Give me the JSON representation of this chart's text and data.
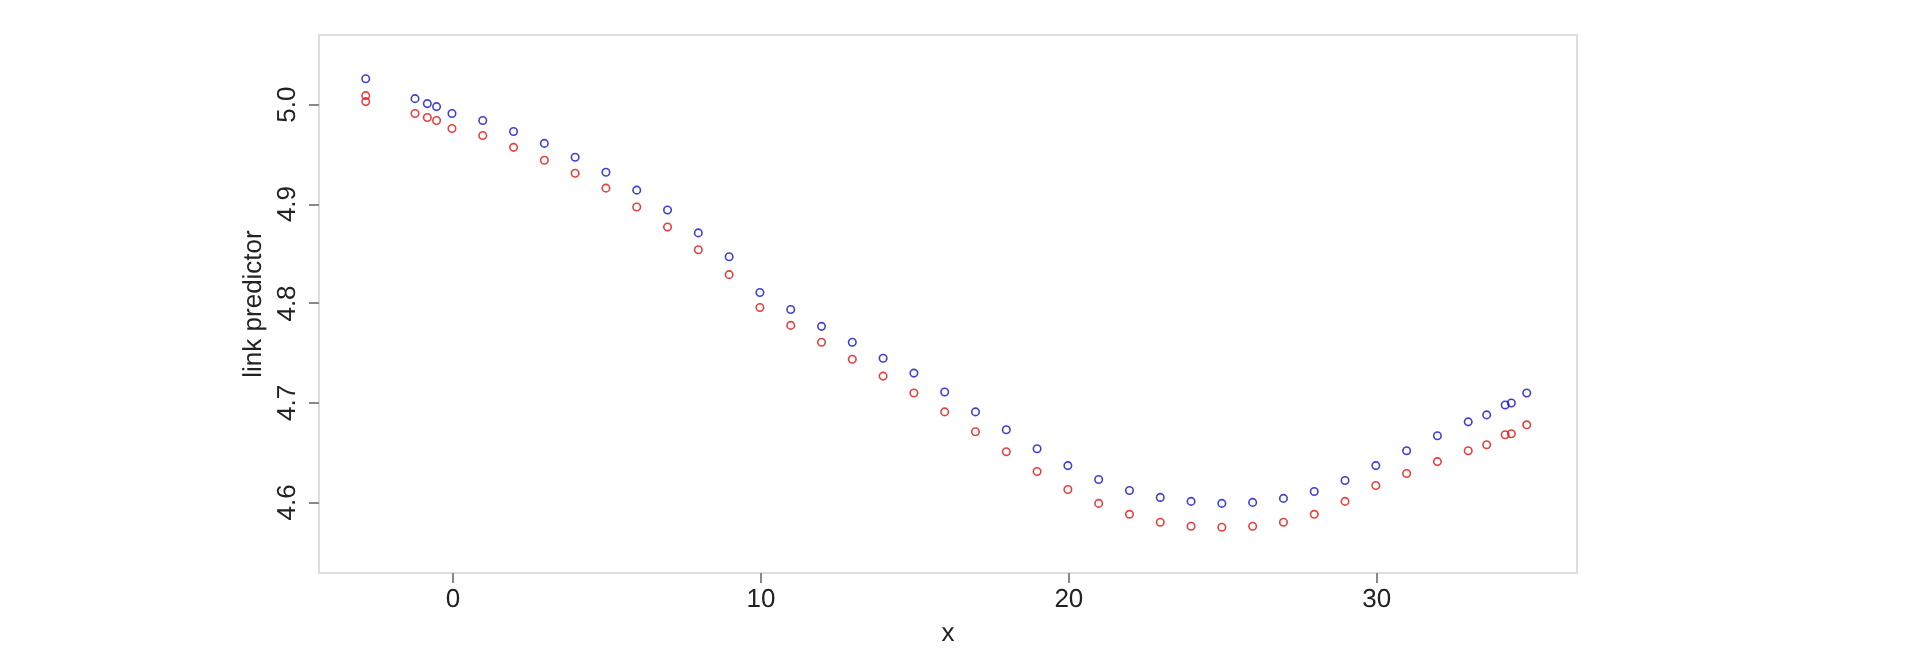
{
  "chart_data": {
    "type": "scatter",
    "xlabel": "x",
    "ylabel": "link predictor",
    "xlim": [
      -4.35,
      36.5
    ],
    "ylim": [
      4.529,
      5.07
    ],
    "xticks": [
      0,
      10,
      20,
      30
    ],
    "yticks": [
      4.6,
      4.7,
      4.8,
      4.9,
      {
        "value": 5,
        "label": "5.0"
      }
    ],
    "grid": false,
    "marker": "circle",
    "series": [
      {
        "color": "#1010c8",
        "x": [
          -2.8,
          -1.2,
          -0.8,
          -0.5,
          0,
          1,
          2,
          3,
          4,
          5,
          6,
          7,
          8,
          9,
          10,
          11,
          12,
          13,
          14,
          15,
          16,
          17,
          18,
          19,
          20,
          21,
          22,
          23,
          24,
          25,
          26,
          27,
          28,
          29,
          30,
          31,
          32,
          33,
          33.6,
          34.2,
          34.4,
          34.9
        ],
        "values": [
          5.025,
          5.005,
          5.0,
          4.997,
          4.99,
          4.983,
          4.972,
          4.96,
          4.946,
          4.931,
          4.913,
          4.893,
          4.87,
          4.846,
          4.81,
          4.793,
          4.776,
          4.76,
          4.744,
          4.729,
          4.71,
          4.69,
          4.672,
          4.653,
          4.636,
          4.622,
          4.611,
          4.604,
          4.6,
          4.598,
          4.599,
          4.603,
          4.61,
          4.621,
          4.636,
          4.651,
          4.666,
          4.68,
          4.687,
          4.697,
          4.699,
          4.709
        ]
      },
      {
        "color": "#e01010",
        "x": [
          -2.8,
          -2.8,
          -1.2,
          -0.8,
          -0.5,
          0,
          1,
          2,
          3,
          4,
          5,
          6,
          7,
          8,
          9,
          10,
          11,
          12,
          13,
          14,
          15,
          16,
          17,
          18,
          19,
          20,
          21,
          22,
          23,
          24,
          25,
          26,
          27,
          28,
          29,
          30,
          31,
          32,
          33,
          33.6,
          34.2,
          34.4,
          34.9
        ],
        "values": [
          5.008,
          5.002,
          4.99,
          4.986,
          4.983,
          4.975,
          4.968,
          4.956,
          4.943,
          4.93,
          4.915,
          4.896,
          4.876,
          4.853,
          4.828,
          4.795,
          4.777,
          4.76,
          4.743,
          4.726,
          4.709,
          4.69,
          4.67,
          4.65,
          4.63,
          4.612,
          4.598,
          4.587,
          4.579,
          4.575,
          4.574,
          4.575,
          4.579,
          4.587,
          4.6,
          4.616,
          4.628,
          4.64,
          4.651,
          4.657,
          4.667,
          4.668,
          4.677
        ]
      }
    ]
  }
}
